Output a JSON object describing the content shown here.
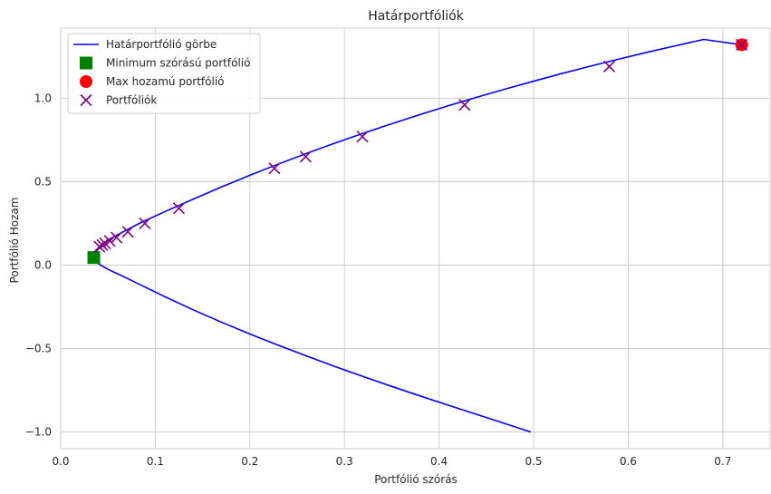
{
  "chart_data": {
    "type": "line",
    "title": "Határportfóliók",
    "xlabel": "Portfólió szórás",
    "ylabel": "Portfólió Hozam",
    "xlim": [
      0.0,
      0.75
    ],
    "ylim": [
      -1.1,
      1.42
    ],
    "xticks": [
      0.0,
      0.1,
      0.2,
      0.3,
      0.4,
      0.5,
      0.6,
      0.7
    ],
    "yticks": [
      -1.0,
      -0.5,
      0.0,
      0.5,
      1.0
    ],
    "xtick_labels": [
      "0.0",
      "0.1",
      "0.2",
      "0.3",
      "0.4",
      "0.5",
      "0.6",
      "0.7"
    ],
    "ytick_labels": [
      "−1.0",
      "−0.5",
      "0.0",
      "0.5",
      "1.0"
    ],
    "grid": true,
    "legend_position": "top-left",
    "series": [
      {
        "name": "Határportfólió görbe",
        "kind": "line",
        "color": "#0000ee",
        "x": [
          0.497,
          0.47,
          0.44,
          0.41,
          0.38,
          0.35,
          0.32,
          0.29,
          0.26,
          0.23,
          0.2,
          0.17,
          0.14,
          0.11,
          0.085,
          0.065,
          0.05,
          0.042,
          0.037,
          0.035,
          0.0355,
          0.038,
          0.042,
          0.048,
          0.056,
          0.068,
          0.085,
          0.11,
          0.14,
          0.17,
          0.2,
          0.23,
          0.26,
          0.29,
          0.32,
          0.35,
          0.38,
          0.41,
          0.44,
          0.47,
          0.5,
          0.53,
          0.56,
          0.59,
          0.62,
          0.65,
          0.68,
          0.72
        ],
        "y": [
          -1.0,
          -0.95,
          -0.895,
          -0.84,
          -0.784,
          -0.727,
          -0.668,
          -0.608,
          -0.545,
          -0.48,
          -0.413,
          -0.342,
          -0.268,
          -0.189,
          -0.12,
          -0.065,
          -0.025,
          0.0,
          0.02,
          0.04,
          0.06,
          0.085,
          0.11,
          0.14,
          0.17,
          0.205,
          0.255,
          0.32,
          0.395,
          0.468,
          0.538,
          0.605,
          0.669,
          0.731,
          0.79,
          0.847,
          0.902,
          0.955,
          1.006,
          1.055,
          1.102,
          1.148,
          1.192,
          1.234,
          1.275,
          1.314,
          1.352,
          1.32
        ]
      },
      {
        "name": "Minimum szórású portfólió",
        "kind": "square",
        "color": "#008000",
        "x": [
          0.035
        ],
        "y": [
          0.045
        ]
      },
      {
        "name": "Max hozamú portfólió",
        "kind": "circle",
        "color": "#ff0000",
        "x": [
          0.72
        ],
        "y": [
          1.32
        ]
      },
      {
        "name": "Portfóliók",
        "kind": "x",
        "color": "#800080",
        "x": [
          0.72,
          0.58,
          0.427,
          0.319,
          0.259,
          0.226,
          0.125,
          0.089,
          0.071,
          0.059,
          0.052,
          0.047,
          0.044,
          0.041
        ],
        "y": [
          1.32,
          1.19,
          0.96,
          0.77,
          0.65,
          0.58,
          0.34,
          0.25,
          0.2,
          0.165,
          0.145,
          0.13,
          0.12,
          0.11
        ]
      }
    ]
  }
}
